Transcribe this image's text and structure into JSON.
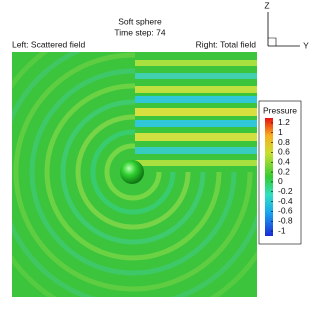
{
  "header": {
    "title": "Soft sphere",
    "subtitle": "Time step: 74",
    "left_label": "Left: Scattered field",
    "right_label": "Right: Total field"
  },
  "axes_triad": {
    "vertical": "Z",
    "horizontal": "Y"
  },
  "colorbar": {
    "title": "Pressure",
    "lim": [
      -1.1,
      1.3
    ],
    "ticks": [
      1.2,
      1,
      0.8,
      0.6,
      0.4,
      0.2,
      0,
      -0.2,
      -0.4,
      -0.6,
      -0.8,
      -1
    ]
  }
}
